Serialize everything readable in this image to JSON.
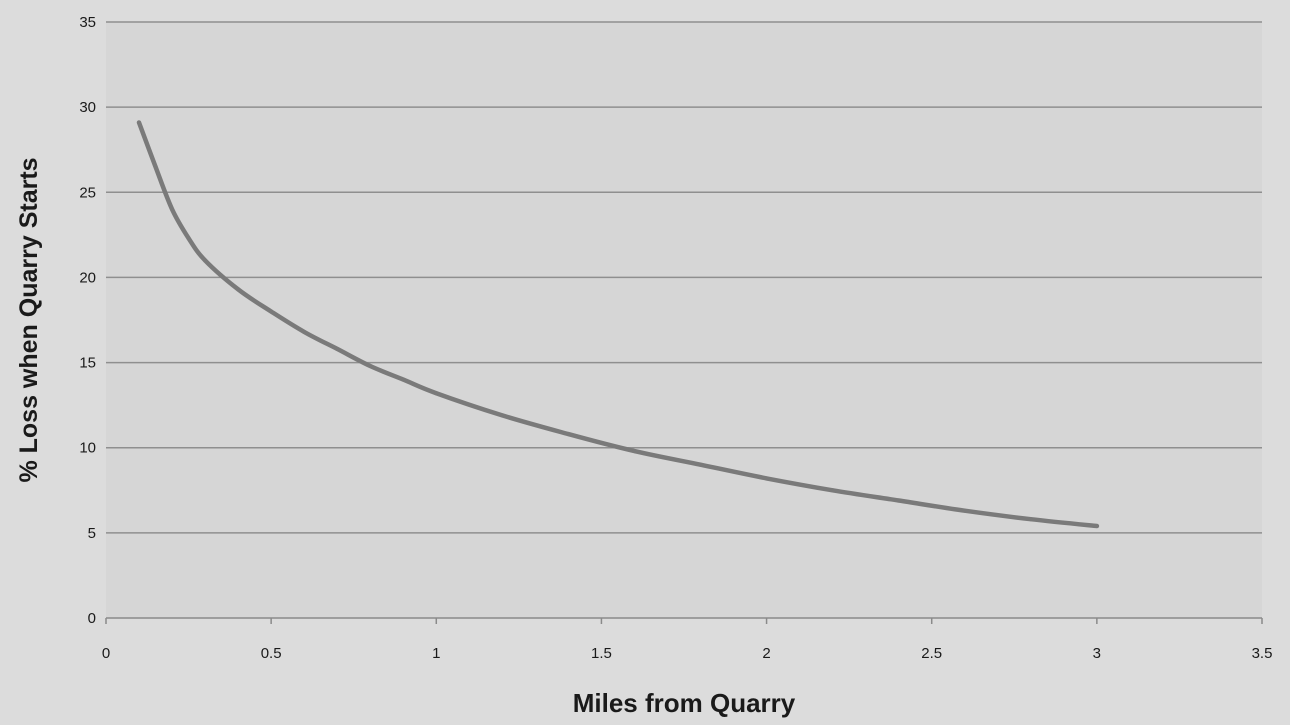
{
  "chart_data": {
    "type": "line",
    "title": "",
    "xlabel": "Miles from Quarry",
    "ylabel": "% Loss when Quarry Starts",
    "xlim": [
      0,
      3.5
    ],
    "ylim": [
      0,
      35
    ],
    "x_ticks": [
      "0",
      "0.5",
      "1",
      "1.5",
      "2",
      "2.5",
      "3",
      "3.5"
    ],
    "y_ticks": [
      "0",
      "5",
      "10",
      "15",
      "20",
      "25",
      "30",
      "35"
    ],
    "grid": "horizontal",
    "legend": "none",
    "series": [
      {
        "color": "#7a7a7a",
        "x": [
          0.1,
          0.15,
          0.2,
          0.25,
          0.3,
          0.4,
          0.5,
          0.6,
          0.7,
          0.8,
          0.9,
          1.0,
          1.2,
          1.4,
          1.6,
          1.8,
          2.0,
          2.2,
          2.4,
          2.6,
          2.8,
          3.0
        ],
        "y": [
          29.1,
          26.5,
          24.0,
          22.3,
          21.0,
          19.3,
          18.0,
          16.8,
          15.8,
          14.8,
          14.0,
          13.2,
          11.9,
          10.8,
          9.8,
          9.0,
          8.2,
          7.5,
          6.9,
          6.3,
          5.8,
          5.4
        ]
      }
    ],
    "colors": {
      "plot_background": "#d6d6d6",
      "page_background": "#dcdcdc",
      "gridline": "#8f8f8f",
      "axis": "#8a8a8a",
      "line": "#7a7a7a"
    }
  }
}
